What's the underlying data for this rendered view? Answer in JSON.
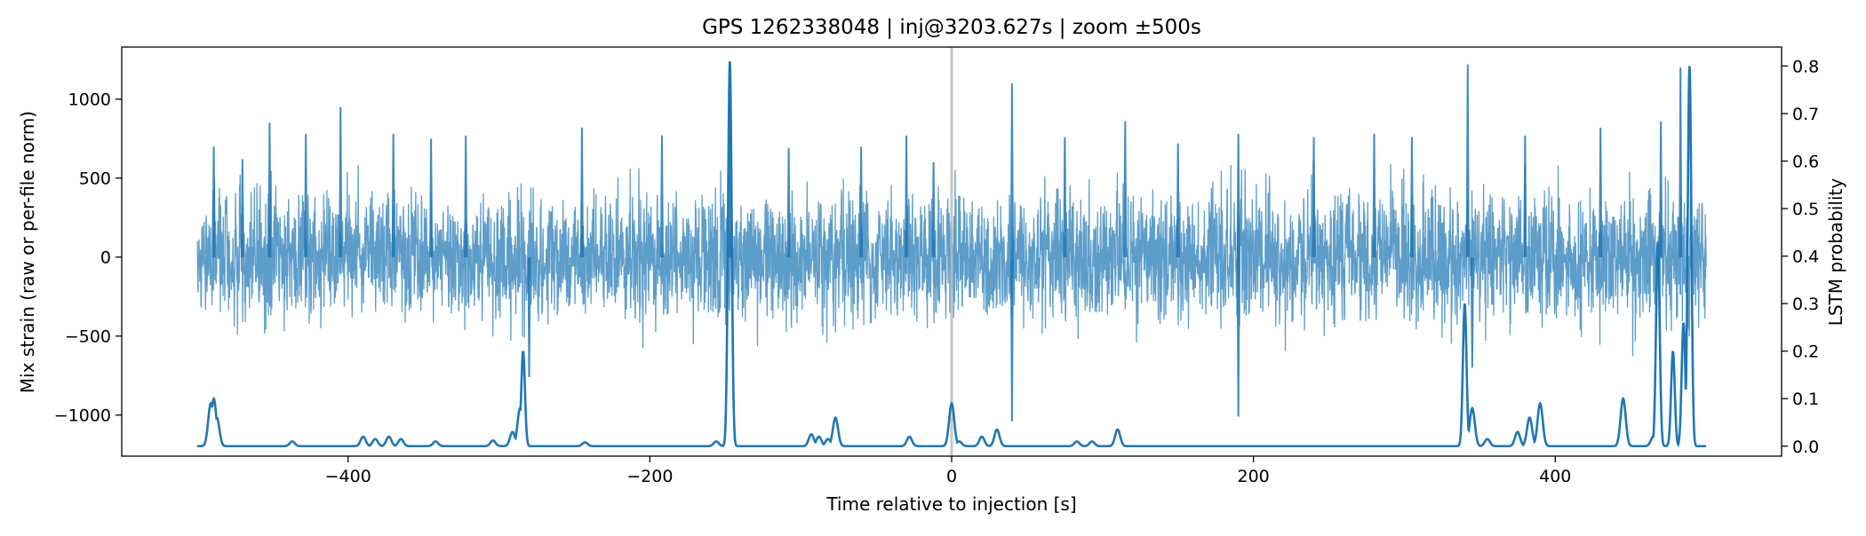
{
  "chart_data": {
    "type": "line",
    "title": "GPS 1262338048 | inj@3203.627s | zoom ±500s",
    "xlabel": "Time relative to injection [s]",
    "ylabel_left": "Mix strain (raw or per-file norm)",
    "ylabel_right": "LSTM probability",
    "xlim": [
      -550,
      550
    ],
    "ylim_left": [
      -1260,
      1330
    ],
    "ylim_right": [
      -0.021,
      0.84
    ],
    "x_ticks": [
      -400,
      -200,
      0,
      200,
      400
    ],
    "y_ticks_left": [
      -1000,
      -500,
      0,
      500,
      1000
    ],
    "y_ticks_right": [
      0.0,
      0.1,
      0.2,
      0.3,
      0.4,
      0.5,
      0.6,
      0.7,
      0.8
    ],
    "injection_marker_x": 0,
    "grid": false,
    "colors": {
      "strain": "#1f77b4",
      "probability": "#1f77b4",
      "marker": "#bbbbbb"
    },
    "series": [
      {
        "axis": "left",
        "x_range": [
          -500,
          500
        ],
        "typical_envelope": [
          -450,
          450
        ],
        "peaks": [
          [
            -489,
            700
          ],
          [
            -470,
            620
          ],
          [
            -452,
            850
          ],
          [
            -428,
            780
          ],
          [
            -405,
            950
          ],
          [
            -370,
            780
          ],
          [
            -345,
            750
          ],
          [
            -322,
            770
          ],
          [
            -280,
            -760
          ],
          [
            -245,
            820
          ],
          [
            -192,
            770
          ],
          [
            -147,
            1220
          ],
          [
            -108,
            690
          ],
          [
            -60,
            700
          ],
          [
            -30,
            770
          ],
          [
            -12,
            600
          ],
          [
            40,
            1100
          ],
          [
            40,
            -1040
          ],
          [
            75,
            760
          ],
          [
            115,
            860
          ],
          [
            150,
            720
          ],
          [
            190,
            780
          ],
          [
            190,
            -1010
          ],
          [
            240,
            760
          ],
          [
            280,
            780
          ],
          [
            305,
            760
          ],
          [
            342,
            1220
          ],
          [
            345,
            -700
          ],
          [
            380,
            770
          ],
          [
            430,
            820
          ],
          [
            470,
            860
          ],
          [
            483,
            1200
          ]
        ]
      },
      {
        "axis": "right",
        "x_range": [
          -500,
          500
        ],
        "baseline": 0.0,
        "peaks": [
          [
            -491,
            0.09
          ],
          [
            -489,
            0.1
          ],
          [
            -487,
            0.06
          ],
          [
            -437,
            0.01
          ],
          [
            -390,
            0.02
          ],
          [
            -382,
            0.015
          ],
          [
            -373,
            0.02
          ],
          [
            -365,
            0.015
          ],
          [
            -342,
            0.01
          ],
          [
            -304,
            0.012
          ],
          [
            -291,
            0.03
          ],
          [
            -286,
            0.08
          ],
          [
            -284,
            0.2
          ],
          [
            -243,
            0.008
          ],
          [
            -156,
            0.01
          ],
          [
            -147,
            0.81
          ],
          [
            -93,
            0.025
          ],
          [
            -88,
            0.02
          ],
          [
            -82,
            0.015
          ],
          [
            -77,
            0.06
          ],
          [
            -28,
            0.02
          ],
          [
            0,
            0.09
          ],
          [
            5,
            0.01
          ],
          [
            20,
            0.02
          ],
          [
            30,
            0.035
          ],
          [
            83,
            0.01
          ],
          [
            93,
            0.01
          ],
          [
            110,
            0.035
          ],
          [
            340,
            0.3
          ],
          [
            345,
            0.08
          ],
          [
            355,
            0.015
          ],
          [
            375,
            0.03
          ],
          [
            383,
            0.06
          ],
          [
            390,
            0.09
          ],
          [
            445,
            0.1
          ],
          [
            465,
            0.02
          ],
          [
            468,
            0.43
          ],
          [
            478,
            0.2
          ],
          [
            485,
            0.26
          ],
          [
            489,
            0.8
          ]
        ]
      }
    ]
  }
}
